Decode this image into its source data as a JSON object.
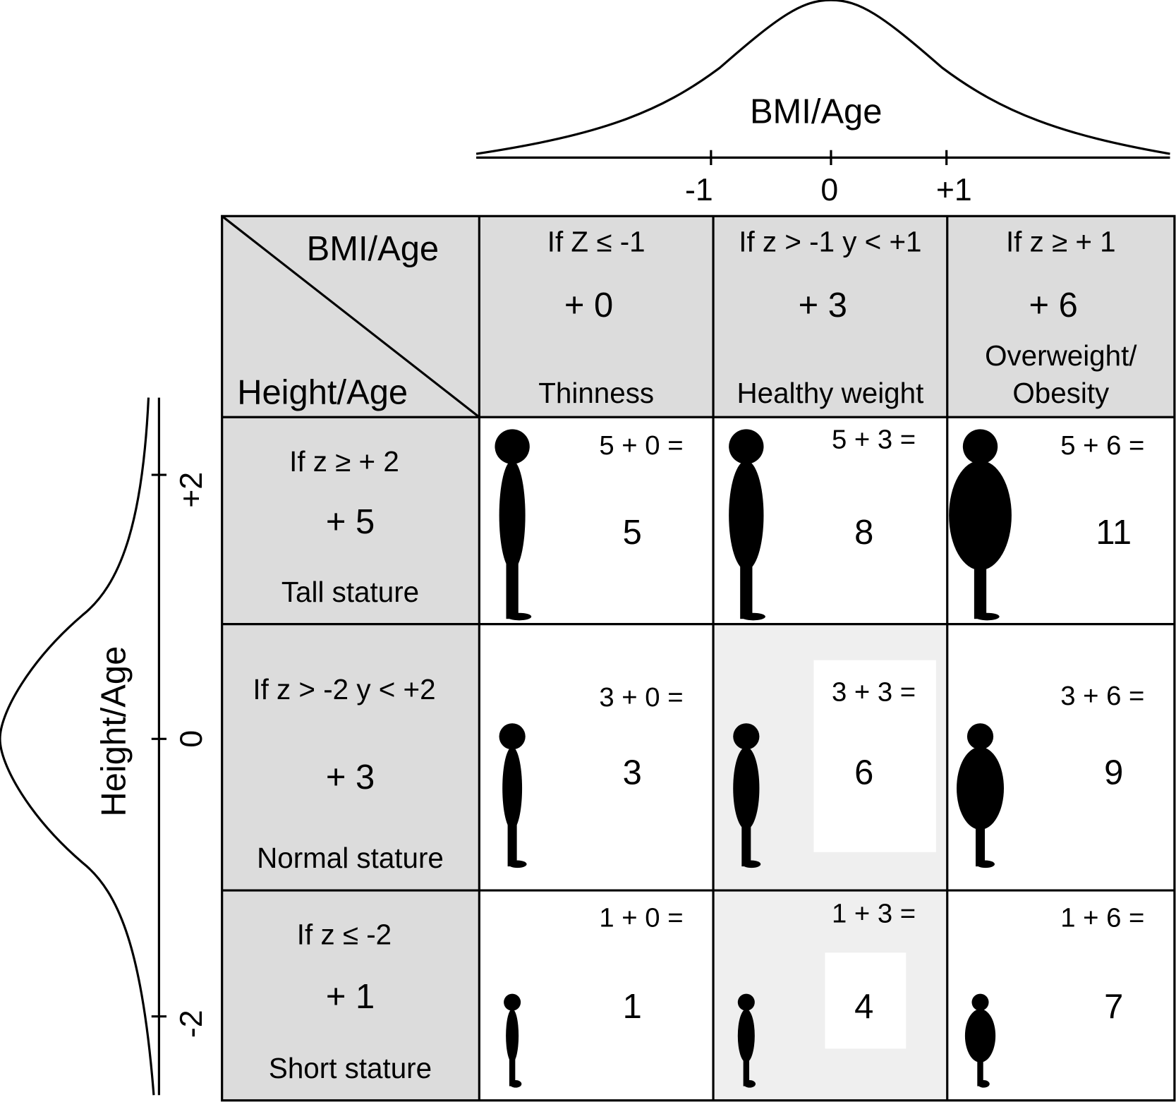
{
  "top_axis": {
    "label": "BMI/Age",
    "ticks": [
      "-1",
      "0",
      "+1"
    ]
  },
  "left_axis": {
    "label": "Height/Age",
    "ticks": [
      "+2",
      "0",
      "-2"
    ]
  },
  "corner": {
    "column_header": "BMI/Age",
    "row_header": "Height/Age"
  },
  "columns": [
    {
      "condition": "If Z ≤ -1",
      "score": "+ 0",
      "label": [
        "Thinness"
      ]
    },
    {
      "condition": "If z > -1 y < +1",
      "score": "+ 3",
      "label": [
        "Healthy weight"
      ]
    },
    {
      "condition": "If z ≥ + 1",
      "score": "+ 6",
      "label": [
        "Overweight/",
        "Obesity"
      ]
    }
  ],
  "rows": [
    {
      "condition": "If z ≥ + 2",
      "score": "+ 5",
      "label": "Tall stature",
      "cells": [
        {
          "sum": "5 + 0 =",
          "result": "5"
        },
        {
          "sum": "5 + 3 =",
          "result": "8"
        },
        {
          "sum": "5 + 6 =",
          "result": "11"
        }
      ]
    },
    {
      "condition": "If z > -2 y < +2",
      "score": "+ 3",
      "label": "Normal stature",
      "cells": [
        {
          "sum": "3 + 0 =",
          "result": "3"
        },
        {
          "sum": "3 + 3 =",
          "result": "6"
        },
        {
          "sum": "3 + 6 =",
          "result": "9"
        }
      ]
    },
    {
      "condition": "If z ≤ -2",
      "score": "+ 1",
      "label": "Short stature",
      "cells": [
        {
          "sum": "1 + 0 =",
          "result": "1"
        },
        {
          "sum": "1 + 3 =",
          "result": "4"
        },
        {
          "sum": "1 + 6 =",
          "result": "7"
        }
      ]
    }
  ]
}
